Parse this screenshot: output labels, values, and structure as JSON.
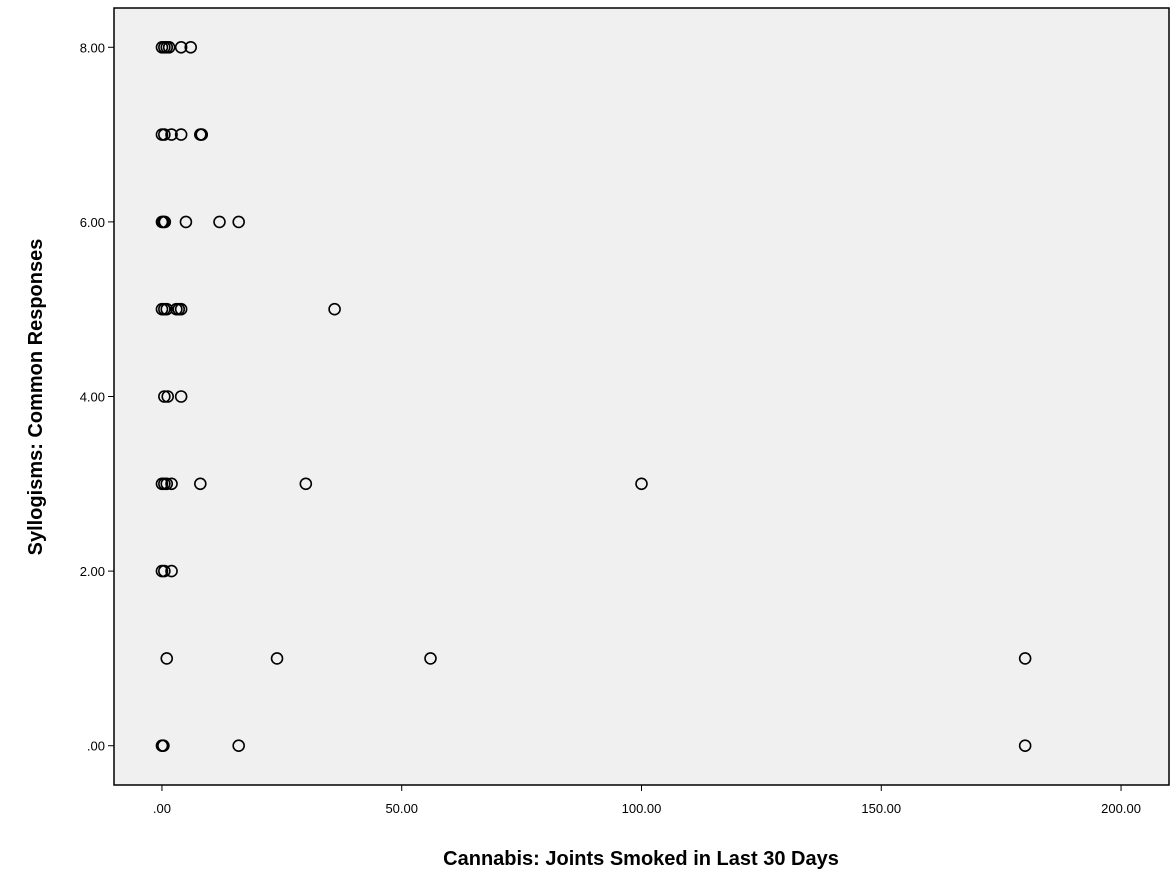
{
  "chart_data": {
    "type": "scatter",
    "title": "",
    "xlabel": "Cannabis: Joints Smoked in Last 30 Days",
    "ylabel": "Syllogisms: Common Responses",
    "xlim": [
      -10,
      210
    ],
    "ylim": [
      -0.45,
      8.45
    ],
    "x_ticks": [
      0,
      50,
      100,
      150,
      200
    ],
    "x_tick_labels": [
      ".00",
      "50.00",
      "100.00",
      "150.00",
      "200.00"
    ],
    "y_ticks": [
      0,
      2,
      4,
      6,
      8
    ],
    "y_tick_labels": [
      ".00",
      "2.00",
      "4.00",
      "6.00",
      "8.00"
    ],
    "grid": false,
    "colors": {
      "plot_background": "#f0f0f0",
      "marker_stroke": "#000000",
      "frame": "#000000"
    },
    "points": [
      {
        "x": 0,
        "y": 8
      },
      {
        "x": 0.5,
        "y": 8
      },
      {
        "x": 1,
        "y": 8
      },
      {
        "x": 1.5,
        "y": 8
      },
      {
        "x": 4,
        "y": 8
      },
      {
        "x": 6,
        "y": 8
      },
      {
        "x": 0,
        "y": 7
      },
      {
        "x": 0.5,
        "y": 7
      },
      {
        "x": 2,
        "y": 7
      },
      {
        "x": 4,
        "y": 7
      },
      {
        "x": 8,
        "y": 7
      },
      {
        "x": 8.3,
        "y": 7
      },
      {
        "x": 0,
        "y": 6
      },
      {
        "x": 0.3,
        "y": 6
      },
      {
        "x": 0.6,
        "y": 6
      },
      {
        "x": 5,
        "y": 6
      },
      {
        "x": 12,
        "y": 6
      },
      {
        "x": 16,
        "y": 6
      },
      {
        "x": 0,
        "y": 5
      },
      {
        "x": 0.5,
        "y": 5
      },
      {
        "x": 1,
        "y": 5
      },
      {
        "x": 3,
        "y": 5
      },
      {
        "x": 3.5,
        "y": 5
      },
      {
        "x": 4,
        "y": 5
      },
      {
        "x": 36,
        "y": 5
      },
      {
        "x": 0.5,
        "y": 4
      },
      {
        "x": 1.2,
        "y": 4
      },
      {
        "x": 4,
        "y": 4
      },
      {
        "x": 0,
        "y": 3
      },
      {
        "x": 0.5,
        "y": 3
      },
      {
        "x": 1,
        "y": 3
      },
      {
        "x": 2,
        "y": 3
      },
      {
        "x": 8,
        "y": 3
      },
      {
        "x": 30,
        "y": 3
      },
      {
        "x": 100,
        "y": 3
      },
      {
        "x": 0,
        "y": 2
      },
      {
        "x": 0.5,
        "y": 2
      },
      {
        "x": 2,
        "y": 2
      },
      {
        "x": 1,
        "y": 1
      },
      {
        "x": 24,
        "y": 1
      },
      {
        "x": 56,
        "y": 1
      },
      {
        "x": 180,
        "y": 1
      },
      {
        "x": 0,
        "y": 0
      },
      {
        "x": 0.3,
        "y": 0
      },
      {
        "x": 16,
        "y": 0
      },
      {
        "x": 180,
        "y": 0
      }
    ]
  }
}
